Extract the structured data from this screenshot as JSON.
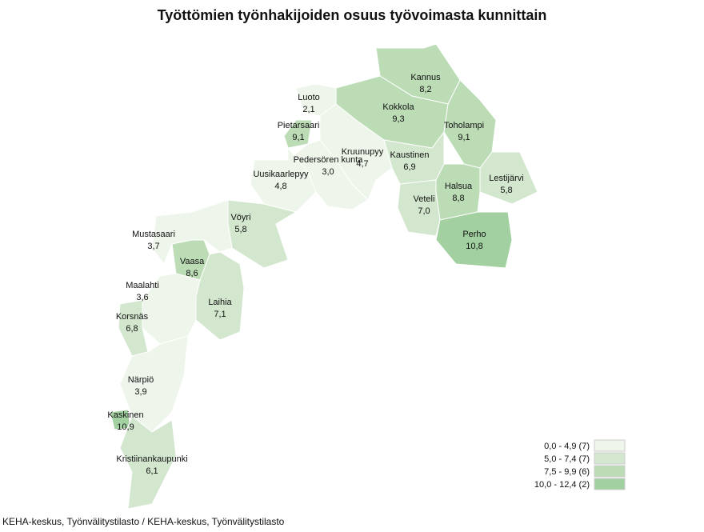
{
  "map": {
    "title": "Työttömien työnhakijoiden osuus työvoimasta kunnittain",
    "regions": [
      {
        "name": "Kannus",
        "value": 8.2,
        "label": "8,2"
      },
      {
        "name": "Kokkola",
        "value": 9.3,
        "label": "9,3"
      },
      {
        "name": "Toholampi",
        "value": 9.1,
        "label": "9,1"
      },
      {
        "name": "Lestijärvi",
        "value": 5.8,
        "label": "5,8"
      },
      {
        "name": "Halsua",
        "value": 8.8,
        "label": "8,8"
      },
      {
        "name": "Kaustinen",
        "value": 6.9,
        "label": "6,9"
      },
      {
        "name": "Veteli",
        "value": 7.0,
        "label": "7,0"
      },
      {
        "name": "Perho",
        "value": 10.8,
        "label": "10,8"
      },
      {
        "name": "Luoto",
        "value": 2.1,
        "label": "2,1"
      },
      {
        "name": "Pietarsaari",
        "value": 9.1,
        "label": "9,1"
      },
      {
        "name": "Kruunupyy",
        "value": 4.7,
        "label": "4,7"
      },
      {
        "name": "Pedersören kunta",
        "value": 3.0,
        "label": "3,0"
      },
      {
        "name": "Uusikaarlepyy",
        "value": 4.8,
        "label": "4,8"
      },
      {
        "name": "Vöyri",
        "value": 5.8,
        "label": "5,8"
      },
      {
        "name": "Mustasaari",
        "value": 3.7,
        "label": "3,7"
      },
      {
        "name": "Vaasa",
        "value": 8.6,
        "label": "8,6"
      },
      {
        "name": "Laihia",
        "value": 7.1,
        "label": "7,1"
      },
      {
        "name": "Maalahti",
        "value": 3.6,
        "label": "3,6"
      },
      {
        "name": "Korsnäs",
        "value": 6.8,
        "label": "6,8"
      },
      {
        "name": "Närpiö",
        "value": 3.9,
        "label": "3,9"
      },
      {
        "name": "Kaskinen",
        "value": 10.9,
        "label": "10,9"
      },
      {
        "name": "Kristiinankaupunki",
        "value": 6.1,
        "label": "6,1"
      }
    ],
    "legend": [
      {
        "label": "0,0 - 4,9 (7)",
        "min": 0.0,
        "max": 4.9,
        "color": "#eef5ea"
      },
      {
        "label": "5,0 - 7,4 (7)",
        "min": 5.0,
        "max": 7.4,
        "color": "#d3e7cf"
      },
      {
        "label": "7,5 - 9,9 (6)",
        "min": 7.5,
        "max": 9.9,
        "color": "#bcdcb6"
      },
      {
        "label": "10,0 - 12,4 (2)",
        "min": 10.0,
        "max": 12.4,
        "color": "#a3d0a0"
      }
    ],
    "source": "KEHA-keskus, Työnvälitystilasto / KEHA-keskus, Työnvälitystilasto"
  }
}
